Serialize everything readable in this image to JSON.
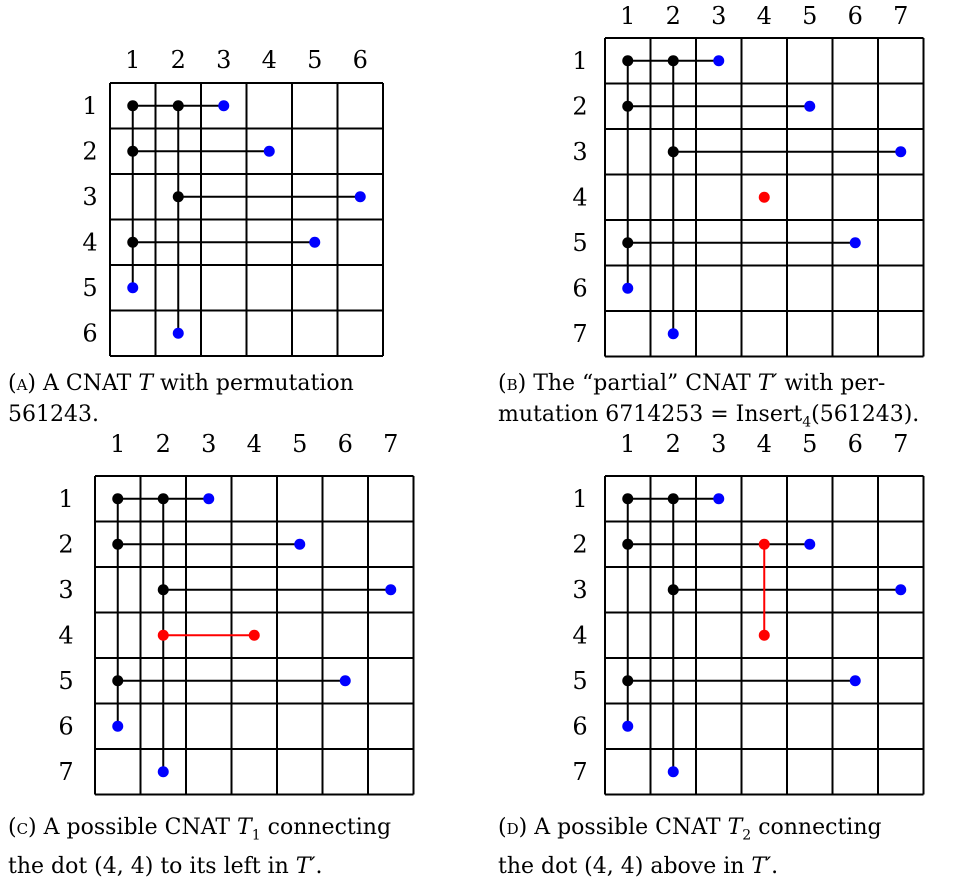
{
  "panels": [
    {
      "id": "A",
      "n": 6,
      "col_labels": [
        "1",
        "2",
        "3",
        "4",
        "5",
        "6"
      ],
      "row_labels": [
        "1",
        "2",
        "3",
        "4",
        "5",
        "6"
      ],
      "black_dots": [
        [
          1,
          1
        ],
        [
          1,
          2
        ],
        [
          2,
          1
        ],
        [
          3,
          2
        ],
        [
          4,
          1
        ]
      ],
      "blue_dots": [
        [
          1,
          3
        ],
        [
          2,
          4
        ],
        [
          3,
          6
        ],
        [
          4,
          5
        ],
        [
          5,
          1
        ],
        [
          6,
          2
        ]
      ],
      "red_dots": [],
      "black_lines": [
        [
          [
            1,
            1
          ],
          [
            5,
            1
          ]
        ],
        [
          [
            1,
            2
          ],
          [
            6,
            2
          ]
        ],
        [
          [
            1,
            1
          ],
          [
            1,
            3
          ]
        ],
        [
          [
            2,
            1
          ],
          [
            2,
            4
          ]
        ],
        [
          [
            3,
            2
          ],
          [
            3,
            6
          ]
        ],
        [
          [
            4,
            1
          ],
          [
            4,
            5
          ]
        ]
      ],
      "red_lines": [],
      "caption": {
        "tag": "(a)",
        "line1": "A CNAT T with permutation",
        "line2": "561243."
      }
    },
    {
      "id": "B",
      "n": 7,
      "col_labels": [
        "1",
        "2",
        "3",
        "4",
        "5",
        "6",
        "7"
      ],
      "row_labels": [
        "1",
        "2",
        "3",
        "4",
        "5",
        "6",
        "7"
      ],
      "black_dots": [
        [
          1,
          1
        ],
        [
          1,
          2
        ],
        [
          2,
          1
        ],
        [
          3,
          2
        ],
        [
          5,
          1
        ]
      ],
      "blue_dots": [
        [
          1,
          3
        ],
        [
          2,
          5
        ],
        [
          3,
          7
        ],
        [
          5,
          6
        ],
        [
          6,
          1
        ],
        [
          7,
          2
        ]
      ],
      "red_dots": [
        [
          4,
          4
        ]
      ],
      "black_lines": [
        [
          [
            1,
            1
          ],
          [
            6,
            1
          ]
        ],
        [
          [
            1,
            2
          ],
          [
            7,
            2
          ]
        ],
        [
          [
            1,
            1
          ],
          [
            1,
            3
          ]
        ],
        [
          [
            2,
            1
          ],
          [
            2,
            5
          ]
        ],
        [
          [
            3,
            2
          ],
          [
            3,
            7
          ]
        ],
        [
          [
            5,
            1
          ],
          [
            5,
            6
          ]
        ]
      ],
      "red_lines": [],
      "caption": {
        "tag": "(b)",
        "line1": "The “partial” CNAT T′ with per-",
        "line2": "mutation 6714253 = Insert4(561243)."
      }
    },
    {
      "id": "C",
      "n": 7,
      "col_labels": [
        "1",
        "2",
        "3",
        "4",
        "5",
        "6",
        "7"
      ],
      "row_labels": [
        "1",
        "2",
        "3",
        "4",
        "5",
        "6",
        "7"
      ],
      "black_dots": [
        [
          1,
          1
        ],
        [
          1,
          2
        ],
        [
          2,
          1
        ],
        [
          3,
          2
        ],
        [
          5,
          1
        ]
      ],
      "blue_dots": [
        [
          1,
          3
        ],
        [
          2,
          5
        ],
        [
          3,
          7
        ],
        [
          5,
          6
        ],
        [
          6,
          1
        ],
        [
          7,
          2
        ]
      ],
      "red_dots": [
        [
          4,
          2
        ],
        [
          4,
          4
        ]
      ],
      "black_lines": [
        [
          [
            1,
            1
          ],
          [
            6,
            1
          ]
        ],
        [
          [
            1,
            2
          ],
          [
            7,
            2
          ]
        ],
        [
          [
            1,
            1
          ],
          [
            1,
            3
          ]
        ],
        [
          [
            2,
            1
          ],
          [
            2,
            5
          ]
        ],
        [
          [
            3,
            2
          ],
          [
            3,
            7
          ]
        ],
        [
          [
            5,
            1
          ],
          [
            5,
            6
          ]
        ]
      ],
      "red_lines": [
        [
          [
            4,
            2
          ],
          [
            4,
            4
          ]
        ]
      ],
      "caption": {
        "tag": "(c)",
        "line1": "A possible CNAT T1 connecting",
        "line2": "the dot (4, 4) to its left in T′."
      }
    },
    {
      "id": "D",
      "n": 7,
      "col_labels": [
        "1",
        "2",
        "3",
        "4",
        "5",
        "6",
        "7"
      ],
      "row_labels": [
        "1",
        "2",
        "3",
        "4",
        "5",
        "6",
        "7"
      ],
      "black_dots": [
        [
          1,
          1
        ],
        [
          1,
          2
        ],
        [
          2,
          1
        ],
        [
          3,
          2
        ],
        [
          5,
          1
        ]
      ],
      "blue_dots": [
        [
          1,
          3
        ],
        [
          2,
          5
        ],
        [
          3,
          7
        ],
        [
          5,
          6
        ],
        [
          6,
          1
        ],
        [
          7,
          2
        ]
      ],
      "red_dots": [
        [
          2,
          4
        ],
        [
          4,
          4
        ]
      ],
      "black_lines": [
        [
          [
            1,
            1
          ],
          [
            6,
            1
          ]
        ],
        [
          [
            1,
            2
          ],
          [
            7,
            2
          ]
        ],
        [
          [
            1,
            1
          ],
          [
            1,
            3
          ]
        ],
        [
          [
            2,
            1
          ],
          [
            2,
            5
          ]
        ],
        [
          [
            3,
            2
          ],
          [
            3,
            7
          ]
        ],
        [
          [
            5,
            1
          ],
          [
            5,
            6
          ]
        ]
      ],
      "red_lines": [
        [
          [
            2,
            4
          ],
          [
            4,
            4
          ]
        ]
      ],
      "caption": {
        "tag": "(d)",
        "line1": "A possible CNAT T2 connecting",
        "line2": "the dot (4, 4) above in T′."
      }
    }
  ],
  "colors": {
    "black": "#000000",
    "blue": "#0000ff",
    "red": "#ff0000",
    "grid": "#000000"
  }
}
